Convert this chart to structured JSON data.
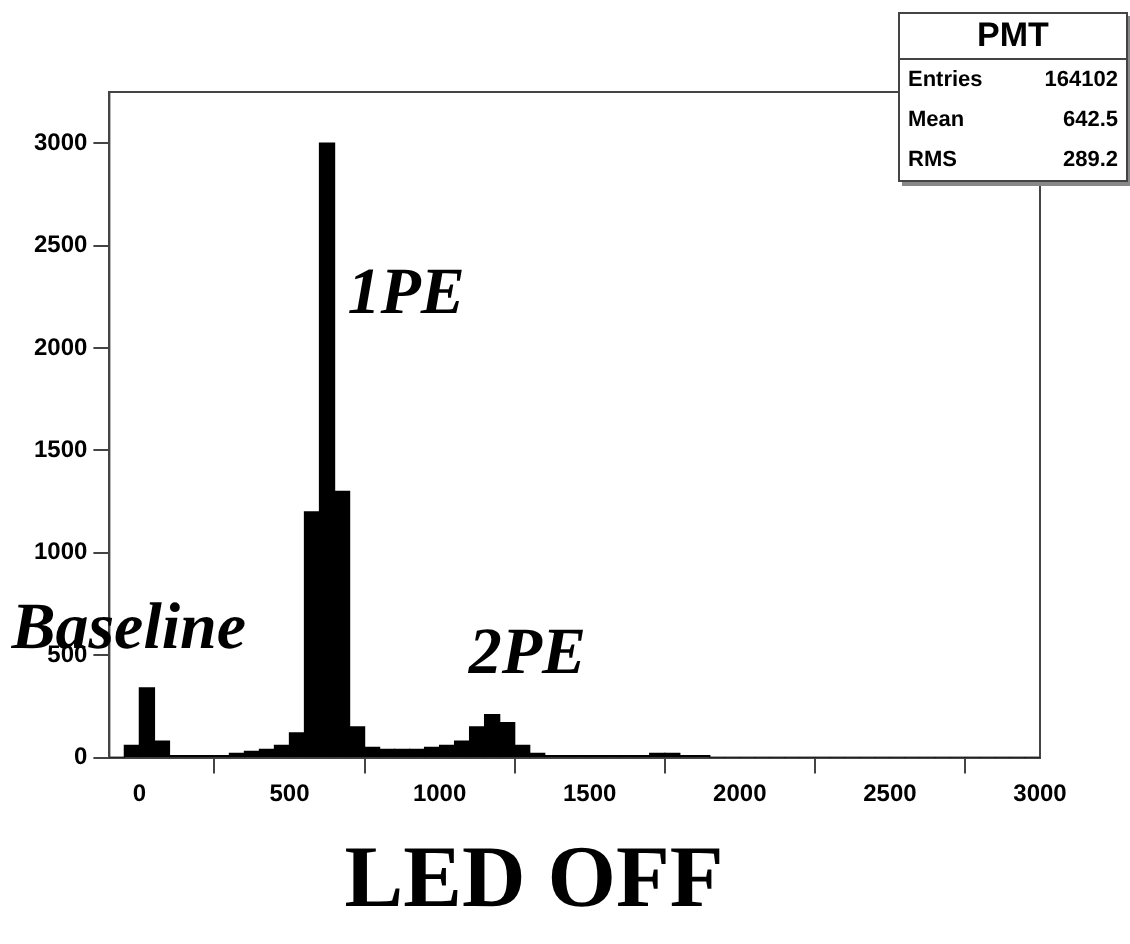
{
  "chart_data": {
    "type": "histogram",
    "title": "LED OFF",
    "bins": [
      -100,
      -50,
      0,
      50,
      100,
      150,
      200,
      250,
      300,
      350,
      400,
      450,
      500,
      550,
      600,
      650,
      700,
      750,
      800,
      850,
      900,
      950,
      1000,
      1050,
      1100,
      1150,
      1200,
      1250,
      1300,
      1350,
      1400,
      1450,
      1500,
      1550,
      1600,
      1650,
      1700,
      1750,
      1800,
      1850,
      1900,
      1950,
      2000,
      2050,
      2100,
      2150,
      2200,
      2250,
      2300,
      2350,
      2400,
      2450,
      2500,
      2550,
      2600,
      2650,
      2700,
      2750,
      2800,
      2850,
      2900,
      2950,
      3000
    ],
    "values": [
      0,
      60,
      340,
      80,
      10,
      10,
      10,
      10,
      20,
      30,
      40,
      60,
      120,
      1200,
      3000,
      1300,
      150,
      50,
      40,
      40,
      40,
      50,
      60,
      80,
      150,
      210,
      170,
      60,
      20,
      10,
      10,
      10,
      10,
      10,
      10,
      10,
      20,
      20,
      10,
      10,
      0,
      0,
      0,
      0,
      0,
      0,
      0,
      0,
      0,
      0,
      0,
      0,
      0,
      0,
      0,
      0,
      0,
      0,
      0,
      0,
      0,
      0
    ],
    "color": "#000000",
    "xlim": [
      -100,
      3000
    ],
    "xticks": [
      0,
      500,
      1000,
      1500,
      2000,
      2500,
      3000
    ],
    "ylim": [
      0,
      3250
    ],
    "yticks": [
      0,
      500,
      1000,
      1500,
      2000,
      2500,
      3000
    ],
    "grid": false,
    "legend": false,
    "annotations": [
      {
        "text": "Baseline",
        "x": 0,
        "y": 340
      },
      {
        "text": "1PE",
        "x": 600,
        "y": 3000
      },
      {
        "text": "2PE",
        "x": 1150,
        "y": 210
      },
      "PMT",
      "Entries",
      "164102",
      "Mean",
      "642.5",
      "RMS",
      "289.2"
    ]
  }
}
